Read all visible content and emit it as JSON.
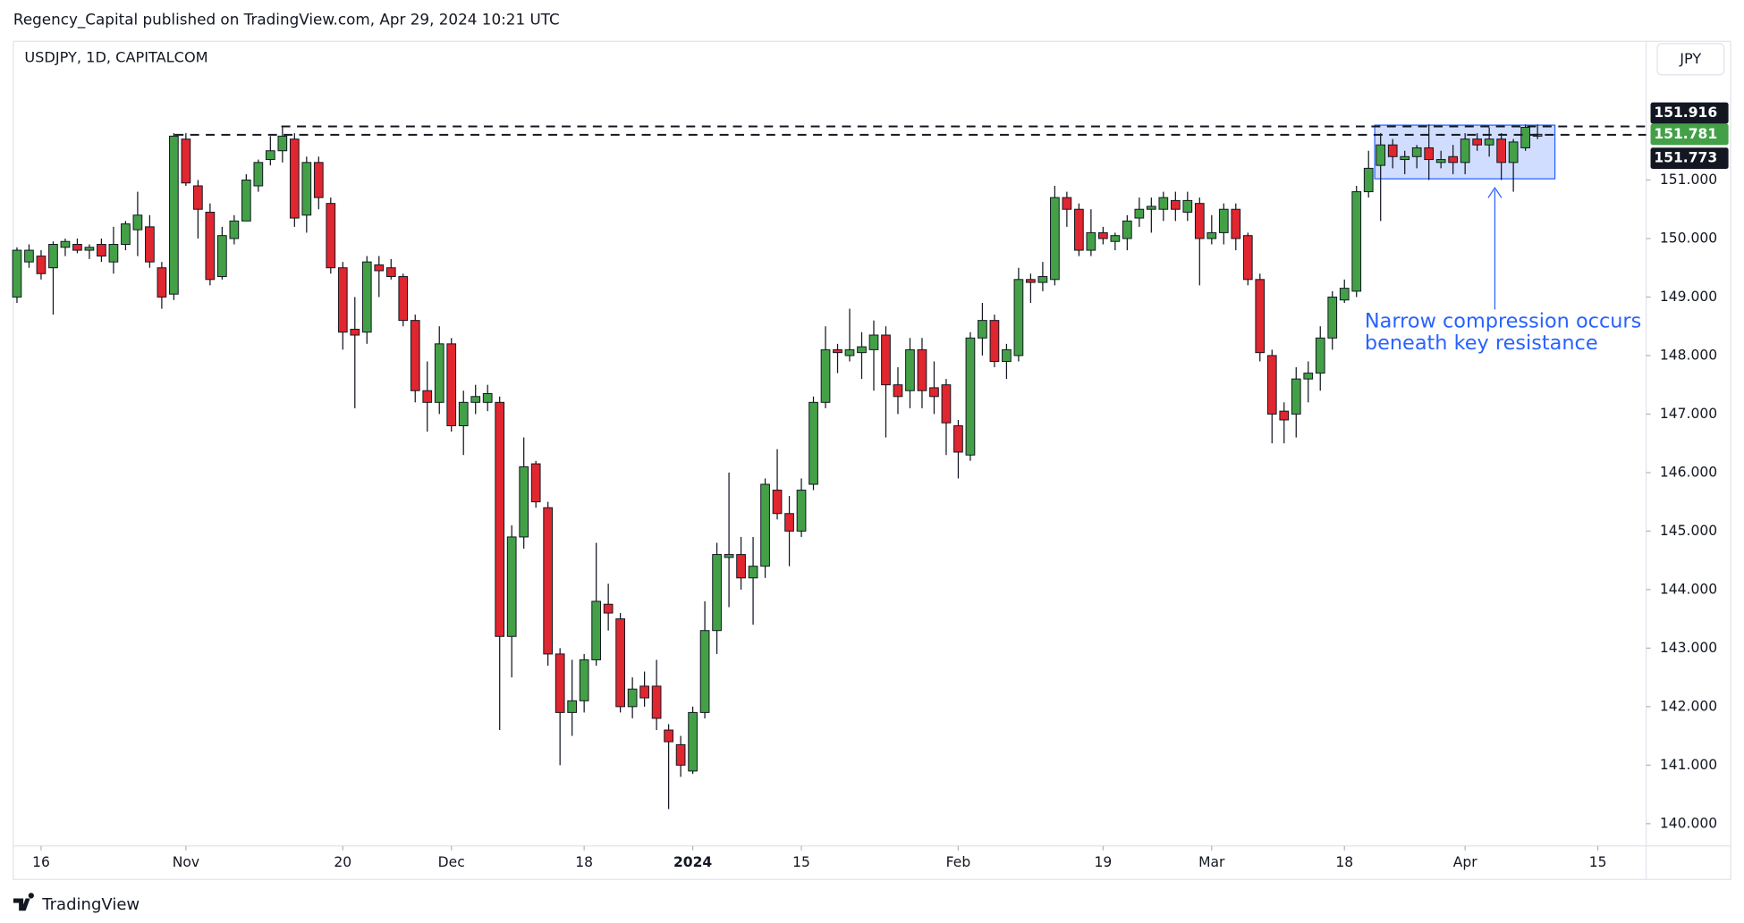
{
  "chart_data": {
    "type": "candlestick",
    "publisher_line": "Regency_Capital published on TradingView.com, Apr 29, 2024 10:21 UTC",
    "title": "USDJPY, 1D, CAPITALCOM",
    "currency": "JPY",
    "brand": "TradingView",
    "annotation": [
      "Narrow compression occurs",
      "beneath key resistance"
    ],
    "up_color": "#43a047",
    "down_color": "#e0262f",
    "wick_color": "#131722",
    "annotation_color": "#2962ff",
    "categories": [
      null,
      null,
      null,
      null,
      null,
      null,
      null,
      null,
      null,
      null,
      null,
      null,
      null,
      null,
      null,
      null,
      null,
      null,
      null,
      null,
      null,
      null,
      null,
      null,
      null,
      null,
      null,
      null,
      null,
      null,
      null,
      null,
      null,
      null,
      null,
      null,
      null,
      null,
      null,
      null,
      null,
      null,
      null,
      null,
      null,
      null,
      null,
      null,
      null,
      null,
      null,
      null,
      null,
      null,
      null,
      null,
      null,
      null,
      null,
      null,
      null,
      null,
      null,
      null,
      null,
      null,
      null,
      null,
      null,
      null,
      null,
      null,
      null,
      null,
      null,
      null,
      null,
      null,
      null,
      null,
      null,
      null,
      null,
      null,
      null,
      null,
      null,
      null,
      null,
      null,
      null,
      null,
      null,
      null,
      null,
      null,
      null,
      null,
      null,
      null,
      null,
      null,
      null,
      null,
      null,
      null,
      null,
      null,
      null,
      null,
      null,
      null,
      null,
      null,
      null,
      null,
      null,
      null,
      null,
      null,
      null,
      null,
      null,
      null,
      null,
      null,
      null
    ],
    "open": [
      149.0,
      149.6,
      149.7,
      149.5,
      149.85,
      149.9,
      149.8,
      149.9,
      149.6,
      149.9,
      150.15,
      150.2,
      149.5,
      149.05,
      151.7,
      150.9,
      150.45,
      149.35,
      150.0,
      150.3,
      150.9,
      151.35,
      151.5,
      151.7,
      150.4,
      151.3,
      150.6,
      149.5,
      148.45,
      148.4,
      149.55,
      149.5,
      149.35,
      148.6,
      147.4,
      147.2,
      148.2,
      146.8,
      147.2,
      147.2,
      147.2,
      143.2,
      144.9,
      146.15,
      145.4,
      142.9,
      141.9,
      142.1,
      142.8,
      143.75,
      143.5,
      142.0,
      142.35,
      142.35,
      141.6,
      141.35,
      140.9,
      141.9,
      143.3,
      144.55,
      144.6,
      144.2,
      144.4,
      145.7,
      145.3,
      145.0,
      145.8,
      147.2,
      148.1,
      148.0,
      148.05,
      148.1,
      148.35,
      147.5,
      147.4,
      148.1,
      147.45,
      147.5,
      146.8,
      146.3,
      148.3,
      148.6,
      147.9,
      148.0,
      149.3,
      149.25,
      149.3,
      150.7,
      150.5,
      149.8,
      150.1,
      149.95,
      150.0,
      150.35,
      150.5,
      150.5,
      150.65,
      150.45,
      150.6,
      150.0,
      150.1,
      150.5,
      150.05,
      149.3,
      148.0,
      147.05,
      147.0,
      147.6,
      147.7,
      148.3,
      148.95,
      149.1,
      150.8,
      151.25,
      151.6,
      151.35,
      151.4,
      151.55,
      151.3,
      151.4,
      151.3,
      151.7,
      151.6,
      151.7,
      151.3,
      151.55,
      151.75
    ],
    "high": [
      149.85,
      149.9,
      149.8,
      149.95,
      150.0,
      150.0,
      149.9,
      150.0,
      150.2,
      150.3,
      150.8,
      150.4,
      149.6,
      151.8,
      151.8,
      151.0,
      150.6,
      150.2,
      150.4,
      151.1,
      151.35,
      151.75,
      151.9,
      151.8,
      151.4,
      151.4,
      150.7,
      149.6,
      149.0,
      149.7,
      149.7,
      149.65,
      149.4,
      148.7,
      147.9,
      148.5,
      148.3,
      147.4,
      147.5,
      147.5,
      147.3,
      145.1,
      146.6,
      146.2,
      145.5,
      143.0,
      142.8,
      142.9,
      144.8,
      144.1,
      143.6,
      142.5,
      142.6,
      142.8,
      141.7,
      141.5,
      142.0,
      143.8,
      144.8,
      146.0,
      144.9,
      144.9,
      145.9,
      146.4,
      145.6,
      145.9,
      147.3,
      148.5,
      148.2,
      148.8,
      148.4,
      148.6,
      148.5,
      147.8,
      148.3,
      148.3,
      147.9,
      147.6,
      146.9,
      148.4,
      148.9,
      148.7,
      148.2,
      149.5,
      149.4,
      149.6,
      150.9,
      150.8,
      150.6,
      150.5,
      150.2,
      150.1,
      150.4,
      150.7,
      150.7,
      150.8,
      150.8,
      150.8,
      150.7,
      150.4,
      150.6,
      150.6,
      150.1,
      149.4,
      148.1,
      147.2,
      147.8,
      147.9,
      148.5,
      149.1,
      149.3,
      150.9,
      151.5,
      151.8,
      151.7,
      151.5,
      151.6,
      151.95,
      151.5,
      151.6,
      151.8,
      151.8,
      151.9,
      151.8,
      151.7,
      151.95,
      151.95
    ],
    "low": [
      148.9,
      149.5,
      149.3,
      148.7,
      149.7,
      149.75,
      149.65,
      149.6,
      149.4,
      149.8,
      149.7,
      149.5,
      148.8,
      148.95,
      150.9,
      150.0,
      149.2,
      149.3,
      149.9,
      150.3,
      150.8,
      151.25,
      151.3,
      150.2,
      150.1,
      150.5,
      149.4,
      148.1,
      147.1,
      148.2,
      149.0,
      149.3,
      148.5,
      147.2,
      146.7,
      147.0,
      146.7,
      146.3,
      147.0,
      147.05,
      141.6,
      142.5,
      144.7,
      145.4,
      142.7,
      141.0,
      141.5,
      141.9,
      142.7,
      143.3,
      141.9,
      141.8,
      142.0,
      141.6,
      140.25,
      140.8,
      140.85,
      141.8,
      142.9,
      143.7,
      144.0,
      143.4,
      144.2,
      145.2,
      144.4,
      144.9,
      145.7,
      147.1,
      147.7,
      147.9,
      147.6,
      147.4,
      146.6,
      147.0,
      147.1,
      147.1,
      147.0,
      146.3,
      145.9,
      146.2,
      148.0,
      147.8,
      147.6,
      147.9,
      148.9,
      149.1,
      149.2,
      150.2,
      149.7,
      149.7,
      149.9,
      149.8,
      149.8,
      150.2,
      150.1,
      150.3,
      150.3,
      150.3,
      149.2,
      149.9,
      149.9,
      149.8,
      149.2,
      147.9,
      146.5,
      146.5,
      146.6,
      147.2,
      147.4,
      148.1,
      148.9,
      149.0,
      150.7,
      150.3,
      151.2,
      151.1,
      151.2,
      151.0,
      151.2,
      151.1,
      151.1,
      151.5,
      151.4,
      151.0,
      150.8,
      151.5,
      151.7
    ],
    "close": [
      149.8,
      149.8,
      149.4,
      149.9,
      149.95,
      149.8,
      149.85,
      149.7,
      149.9,
      150.25,
      150.4,
      149.6,
      149.0,
      151.75,
      150.95,
      150.5,
      149.3,
      150.05,
      150.3,
      151.0,
      151.3,
      151.5,
      151.75,
      150.35,
      151.3,
      150.7,
      149.5,
      148.4,
      148.35,
      149.6,
      149.45,
      149.35,
      148.6,
      147.4,
      147.2,
      148.2,
      146.8,
      147.2,
      147.3,
      147.35,
      143.2,
      144.9,
      146.1,
      145.5,
      142.9,
      141.9,
      142.1,
      142.8,
      143.8,
      143.6,
      142.0,
      142.3,
      142.15,
      141.8,
      141.4,
      141.0,
      141.9,
      143.3,
      144.6,
      144.6,
      144.2,
      144.4,
      145.8,
      145.3,
      145.0,
      145.7,
      147.2,
      148.1,
      148.05,
      148.1,
      148.15,
      148.35,
      147.5,
      147.3,
      148.1,
      147.4,
      147.3,
      146.85,
      146.35,
      148.3,
      148.6,
      147.9,
      148.1,
      149.3,
      149.25,
      149.35,
      150.7,
      150.5,
      149.8,
      150.1,
      150.0,
      150.05,
      150.3,
      150.5,
      150.55,
      150.7,
      150.5,
      150.65,
      150.0,
      150.1,
      150.5,
      150.0,
      149.3,
      148.05,
      147.0,
      146.9,
      147.6,
      147.7,
      148.3,
      149.0,
      149.15,
      150.8,
      151.2,
      151.6,
      151.4,
      151.4,
      151.55,
      151.35,
      151.35,
      151.3,
      151.7,
      151.6,
      151.7,
      151.3,
      151.65,
      151.9,
      151.781
    ],
    "levels": [
      {
        "value": 151.916,
        "label": "151.916",
        "color": "#131722"
      },
      {
        "value": 151.781,
        "label": "151.781",
        "color": "#43a047"
      },
      {
        "value": 151.773,
        "label": "151.773",
        "color": "#131722"
      }
    ],
    "xlim": [
      -0.3,
      135
    ],
    "xticks": [
      {
        "value": 2,
        "label": "16"
      },
      {
        "value": 14,
        "label": "Nov"
      },
      {
        "value": 27,
        "label": "20"
      },
      {
        "value": 36,
        "label": "Dec"
      },
      {
        "value": 47,
        "label": "18"
      },
      {
        "value": 56,
        "label": "2024"
      },
      {
        "value": 65,
        "label": "15"
      },
      {
        "value": 78,
        "label": "Feb"
      },
      {
        "value": 90,
        "label": "19"
      },
      {
        "value": 99,
        "label": "Mar"
      },
      {
        "value": 110,
        "label": "18"
      },
      {
        "value": 120,
        "label": "Apr"
      },
      {
        "value": 131,
        "label": "15"
      }
    ],
    "ylim": [
      139.62,
      153.37
    ],
    "yticks": [
      {
        "value": 140,
        "label": "140.000"
      },
      {
        "value": 141,
        "label": "141.000"
      },
      {
        "value": 142,
        "label": "142.000"
      },
      {
        "value": 143,
        "label": "143.000"
      },
      {
        "value": 144,
        "label": "144.000"
      },
      {
        "value": 145,
        "label": "145.000"
      },
      {
        "value": 146,
        "label": "146.000"
      },
      {
        "value": 147,
        "label": "147.000"
      },
      {
        "value": 148,
        "label": "148.000"
      },
      {
        "value": 149,
        "label": "149.000"
      },
      {
        "value": 150,
        "label": "150.000"
      },
      {
        "value": 151,
        "label": "151.000"
      }
    ]
  }
}
